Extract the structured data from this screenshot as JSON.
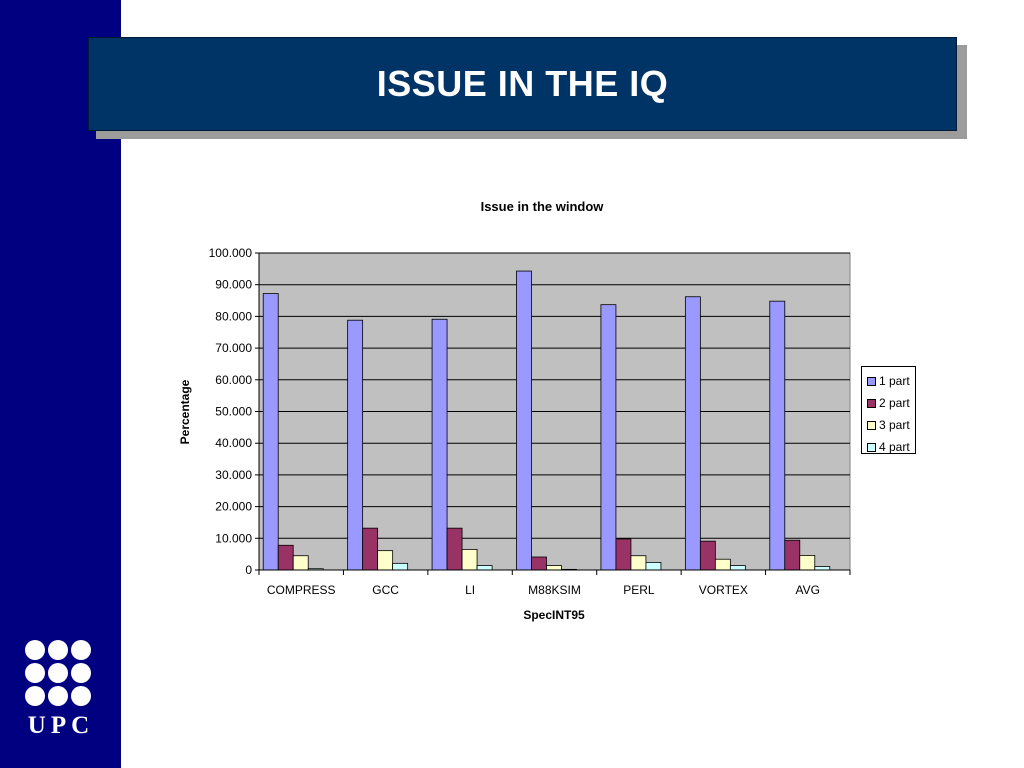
{
  "slide": {
    "title": "ISSUE IN THE IQ",
    "logo_text": "UPC",
    "colors": {
      "sidebar": "#000080",
      "banner": "#003366",
      "banner_shadow": "#9c9c9c",
      "plot_background": "#c0c0c0"
    }
  },
  "chart_data": {
    "type": "bar",
    "title": "Issue in the window",
    "xlabel": "SpecINT95",
    "ylabel": "Percentage",
    "ylim": [
      0,
      100
    ],
    "ytick_labels": [
      "0",
      "10.000",
      "20.000",
      "30.000",
      "40.000",
      "50.000",
      "60.000",
      "70.000",
      "80.000",
      "90.000",
      "100.000"
    ],
    "grid": true,
    "legend_position": "right",
    "categories": [
      "COMPRESS",
      "GCC",
      "LI",
      "M88KSIM",
      "PERL",
      "VORTEX",
      "AVG"
    ],
    "series": [
      {
        "name": "1 part",
        "color": "#9999ff",
        "values": [
          87.2,
          78.8,
          79.1,
          94.3,
          83.7,
          86.2,
          84.8
        ]
      },
      {
        "name": "2 part",
        "color": "#993366",
        "values": [
          7.8,
          13.2,
          13.2,
          4.1,
          9.8,
          9.1,
          9.4
        ]
      },
      {
        "name": "3 part",
        "color": "#ffffcc",
        "values": [
          4.5,
          6.1,
          6.5,
          1.4,
          4.5,
          3.4,
          4.6
        ]
      },
      {
        "name": "4 part",
        "color": "#ccffff",
        "values": [
          0.4,
          2.1,
          1.4,
          0.2,
          2.4,
          1.4,
          1.1
        ]
      }
    ]
  }
}
